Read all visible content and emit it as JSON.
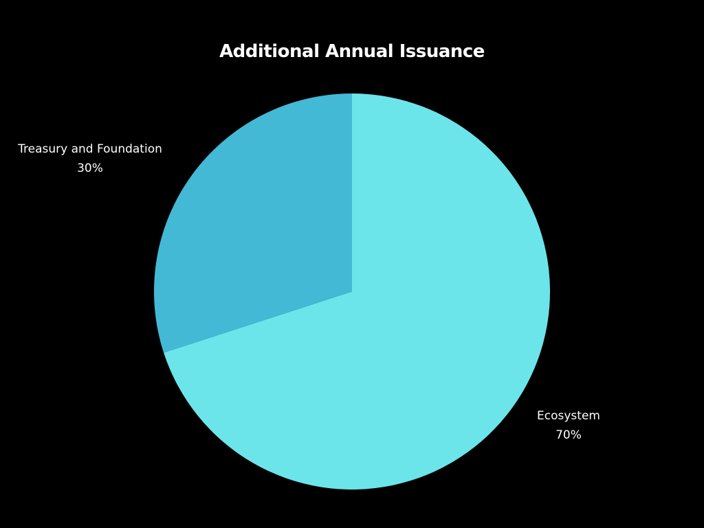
{
  "chart_data": {
    "type": "pie",
    "title": "Additional Annual Issuance",
    "slices": [
      {
        "label": "Ecosystem",
        "value": 70,
        "value_label": "70%",
        "color": "#6ce5ea"
      },
      {
        "label": "Treasury and Foundation",
        "value": 30,
        "value_label": "30%",
        "color": "#43b9d6"
      }
    ],
    "start_angle_deg": 0,
    "direction": "clockwise",
    "legend": "none",
    "background_color": "#000000",
    "label_color": "#ffffff"
  }
}
